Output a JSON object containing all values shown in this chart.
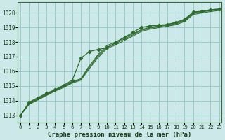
{
  "title": "Graphe pression niveau de la mer (hPa)",
  "bg_color": "#cce8e8",
  "grid_color": "#99cccc",
  "line_color": "#2d6a2d",
  "ylim": [
    1012.5,
    1020.7
  ],
  "xlim": [
    -0.3,
    23.3
  ],
  "y_ticks": [
    1013,
    1014,
    1015,
    1016,
    1017,
    1018,
    1019,
    1020
  ],
  "x_ticks": [
    0,
    1,
    2,
    3,
    4,
    5,
    6,
    7,
    8,
    9,
    10,
    11,
    12,
    13,
    14,
    15,
    16,
    17,
    18,
    19,
    20,
    21,
    22,
    23
  ],
  "series_with_markers": [
    1013.0,
    1013.9,
    1014.2,
    1014.5,
    1014.75,
    1015.05,
    1015.4,
    1016.9,
    1017.35,
    1017.5,
    1017.6,
    1017.95,
    1018.3,
    1018.65,
    1019.0,
    1019.1,
    1019.15,
    1019.2,
    1019.35,
    1019.55,
    1020.05,
    1020.1,
    1020.2,
    1020.25
  ],
  "series_plain": [
    [
      1013.0,
      1013.85,
      1014.15,
      1014.45,
      1014.72,
      1015.0,
      1015.3,
      1015.5,
      1016.4,
      1017.15,
      1017.75,
      1018.0,
      1018.3,
      1018.55,
      1018.85,
      1019.0,
      1019.1,
      1019.2,
      1019.3,
      1019.5,
      1020.0,
      1020.1,
      1020.2,
      1020.25
    ],
    [
      1013.0,
      1013.8,
      1014.1,
      1014.4,
      1014.7,
      1014.95,
      1015.25,
      1015.45,
      1016.3,
      1017.05,
      1017.65,
      1017.9,
      1018.2,
      1018.48,
      1018.8,
      1018.95,
      1019.05,
      1019.15,
      1019.25,
      1019.45,
      1019.95,
      1020.05,
      1020.15,
      1020.2
    ],
    [
      1013.0,
      1013.75,
      1014.05,
      1014.35,
      1014.65,
      1014.9,
      1015.2,
      1015.4,
      1016.2,
      1016.95,
      1017.55,
      1017.8,
      1018.1,
      1018.4,
      1018.72,
      1018.88,
      1018.98,
      1019.08,
      1019.18,
      1019.4,
      1019.88,
      1019.98,
      1020.08,
      1020.15
    ]
  ]
}
